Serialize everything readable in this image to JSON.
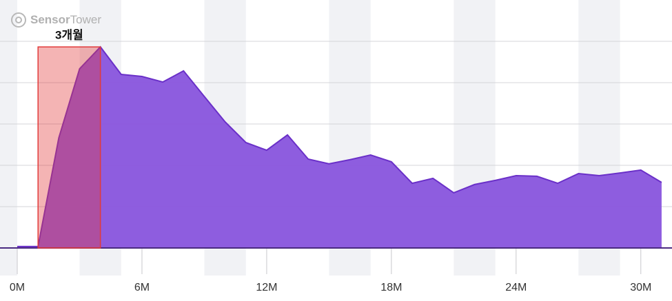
{
  "chart_data": {
    "type": "area",
    "watermark": [
      "Sensor",
      "Tower"
    ],
    "x": [
      0,
      1,
      2,
      3,
      4,
      5,
      6,
      7,
      8,
      9,
      10,
      11,
      12,
      13,
      14,
      15,
      16,
      17,
      18,
      19,
      20,
      21,
      22,
      23,
      24,
      25,
      26,
      27,
      28,
      29,
      30,
      31
    ],
    "series": [
      {
        "color": "#8a58de",
        "values": [
          0.7,
          0.7,
          53.3,
          86.7,
          97.3,
          84,
          83,
          80.3,
          85.7,
          73.3,
          61,
          51,
          47.3,
          54.7,
          43,
          40.7,
          42.7,
          45,
          41.7,
          31.3,
          33.7,
          26.7,
          30.7,
          32.7,
          35,
          34.7,
          31.3,
          36,
          35,
          36.3,
          37.7,
          31.7
        ]
      }
    ],
    "xlim": [
      -0.83,
      31.5
    ],
    "xticks": [
      {
        "value": 0,
        "label": "0M"
      },
      {
        "value": 6,
        "label": "6M"
      },
      {
        "value": 12,
        "label": "12M"
      },
      {
        "value": 18,
        "label": "18M"
      },
      {
        "value": 24,
        "label": "24M"
      },
      {
        "value": 30,
        "label": "30M"
      }
    ],
    "ylim": [
      0,
      120
    ],
    "yticks": [
      20,
      40,
      60,
      80,
      100
    ],
    "grid": true,
    "highlight": {
      "label": "3개월",
      "x": [
        1,
        4
      ],
      "top": 97.3,
      "color": "#e23a3a"
    }
  }
}
